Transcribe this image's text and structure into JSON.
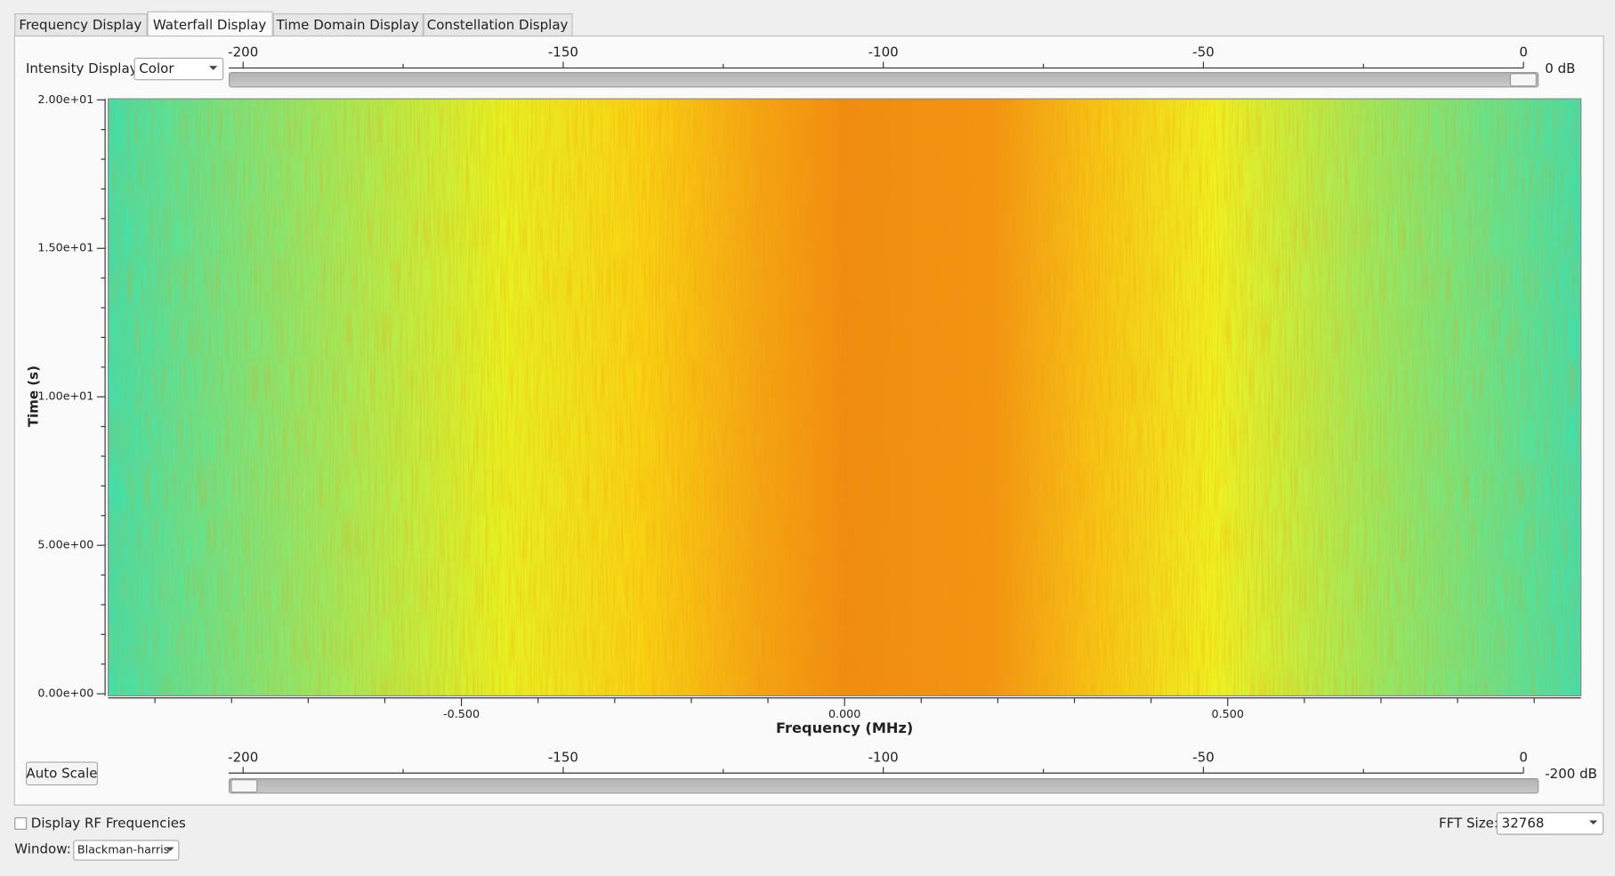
{
  "tabs": [
    "Frequency Display",
    "Waterfall Display",
    "Time Domain Display",
    "Constellation Display"
  ],
  "intensity": {
    "label": "Intensity Display:",
    "value": "Color"
  },
  "top_slider": {
    "ticks": [
      "-200",
      "-150",
      "-100",
      "-50",
      "0"
    ],
    "value_label": "0 dB"
  },
  "plot": {
    "y_ticks": [
      "0.00e+00",
      "5.00e+00",
      "1.00e+01",
      "1.50e+01",
      "2.00e+01"
    ],
    "y_label": "Time (s)",
    "x_ticks": [
      "-0.500",
      "0.000",
      "0.500"
    ],
    "x_label": "Frequency (MHz)"
  },
  "auto_scale": "Auto Scale",
  "bottom_slider": {
    "ticks": [
      "-200",
      "-150",
      "-100",
      "-50",
      "0"
    ],
    "value_label": "-200 dB"
  },
  "rf_checkbox": "Display RF Frequencies",
  "fft": {
    "label": "FFT Size:",
    "value": "32768"
  },
  "window": {
    "label": "Window:",
    "value": "Blackman-harris"
  }
}
